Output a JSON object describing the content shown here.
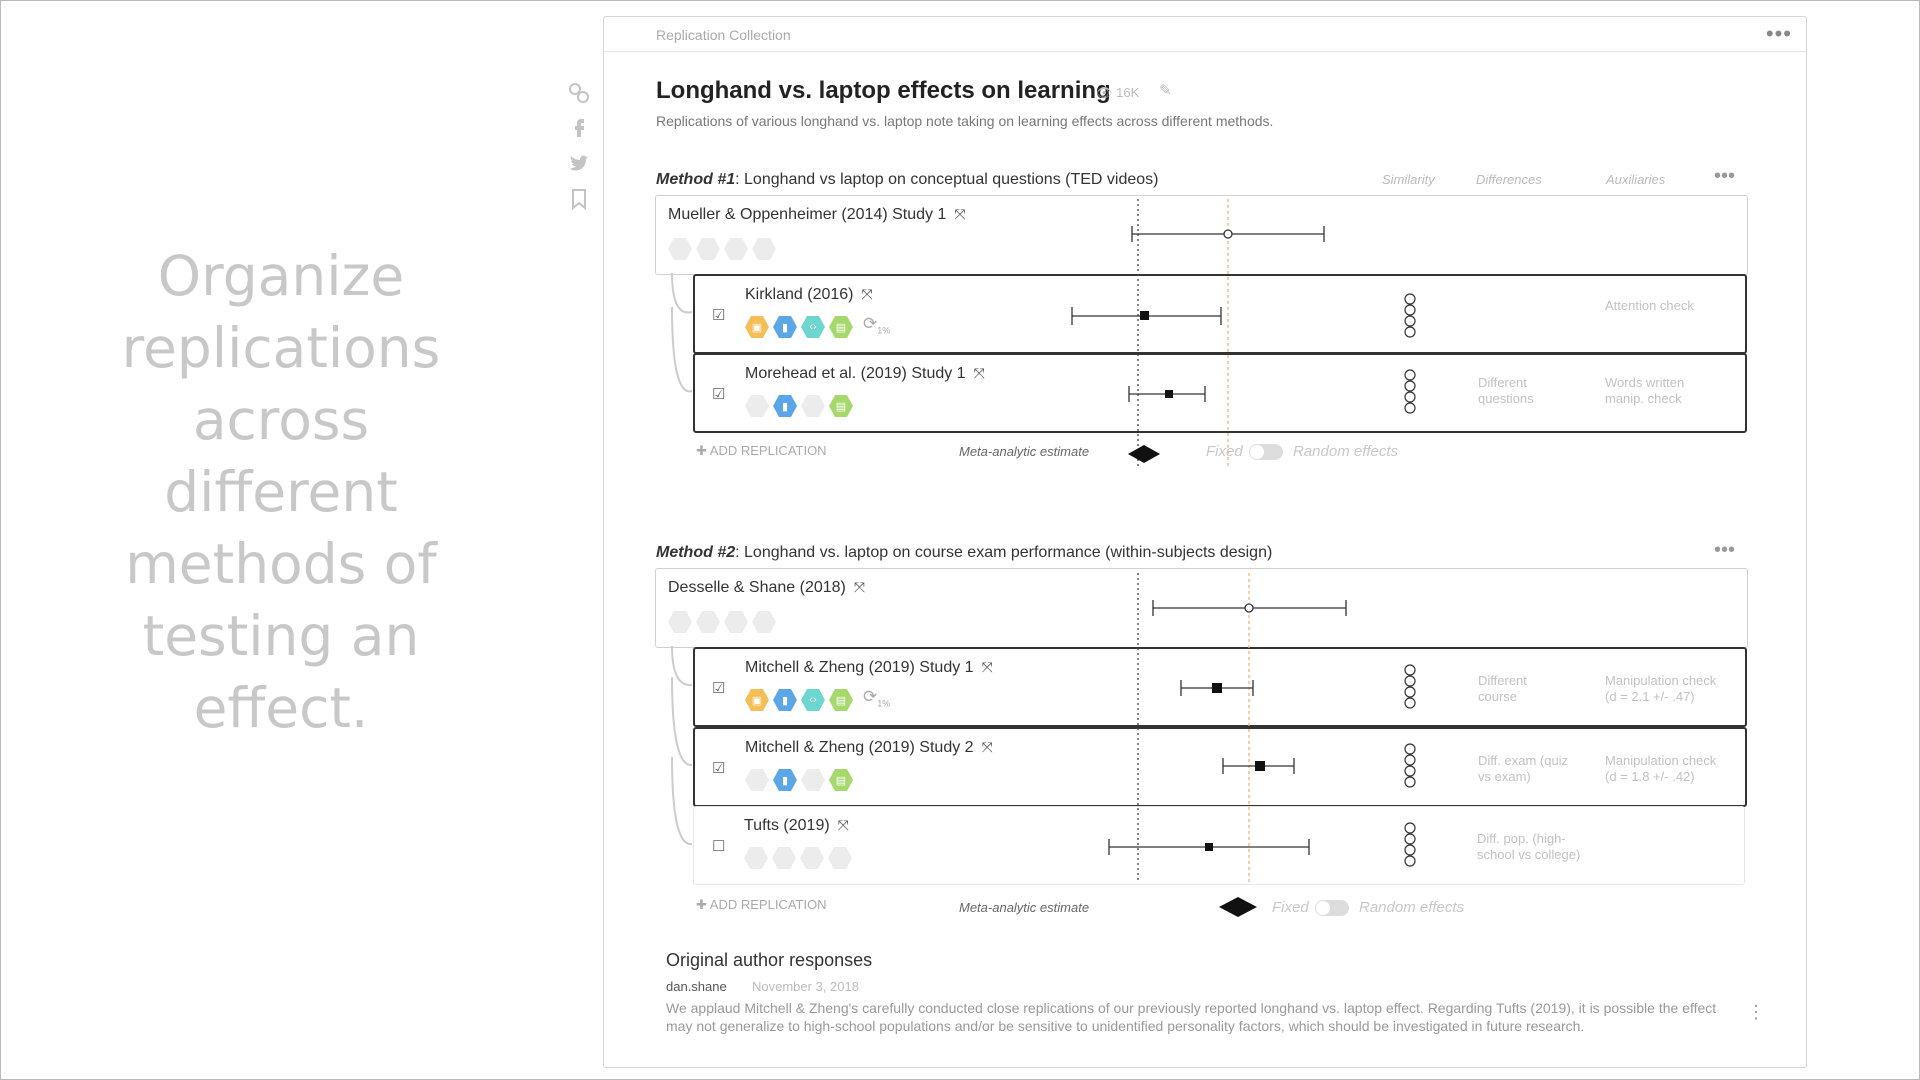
{
  "tagline": "Organize replications across different methods of testing an effect.",
  "breadcrumb": "Replication Collection",
  "title": "Longhand vs. laptop effects on learning",
  "views": "16K",
  "subtitle": "Replications of various longhand vs. laptop note taking on learning effects across different methods.",
  "columns": {
    "similarity": "Similarity",
    "differences": "Differences",
    "auxiliaries": "Auxiliaries"
  },
  "methods": [
    {
      "label": "Method #1",
      "title": ": Longhand vs laptop on conceptual questions (TED videos)",
      "original": {
        "name": "Mueller & Oppenheimer (2014) Study 1"
      },
      "replications": [
        {
          "name": "Kirkland (2016)",
          "checked": true,
          "replicates_note": "1%",
          "differences": "",
          "auxiliaries": "Attention check"
        },
        {
          "name": "Morehead et al. (2019) Study 1",
          "checked": true,
          "differences": "Different questions",
          "auxiliaries": "Words written manip. check"
        }
      ],
      "add_label": "ADD REPLICATION",
      "meta_label": "Meta-analytic estimate",
      "fixed_label": "Fixed",
      "random_label": "Random effects"
    },
    {
      "label": "Method #2",
      "title": ": Longhand vs. laptop on course exam performance (within-subjects design)",
      "original": {
        "name": "Desselle & Shane (2018)"
      },
      "replications": [
        {
          "name": "Mitchell & Zheng (2019) Study 1",
          "checked": true,
          "replicates_note": "1%",
          "differences": "Different course",
          "auxiliaries": "Manipulation check (d = 2.1 +/- .47)"
        },
        {
          "name": "Mitchell & Zheng (2019) Study 2",
          "checked": true,
          "differences": "Diff. exam (quiz vs exam)",
          "auxiliaries": "Manipulation check (d = 1.8 +/- .42)"
        },
        {
          "name": "Tufts (2019)",
          "checked": false,
          "differences": "Diff. pop. (high-school vs college)",
          "auxiliaries": ""
        }
      ],
      "add_label": "ADD REPLICATION",
      "meta_label": "Meta-analytic estimate",
      "fixed_label": "Fixed",
      "random_label": "Random effects"
    }
  ],
  "responses": {
    "title": "Original author responses",
    "user": "dan.shane",
    "date": "November 3, 2018",
    "text": "We applaud Mitchell & Zheng's carefully conducted close replications of our previously reported longhand vs. laptop effect. Regarding Tufts (2019), it is possible the effect may not generalize to high-school populations and/or be sensitive to unidentified personality factors, which should be investigated in future research."
  },
  "icons": {
    "share": [
      "link-icon",
      "facebook-icon",
      "twitter-icon",
      "bookmark-icon"
    ]
  },
  "colors": {
    "orange": "#f5be56",
    "blue": "#5aa6e6",
    "turquoise": "#6ed6d0",
    "green": "#a7d86e",
    "reference_line": "#f4b27a"
  }
}
